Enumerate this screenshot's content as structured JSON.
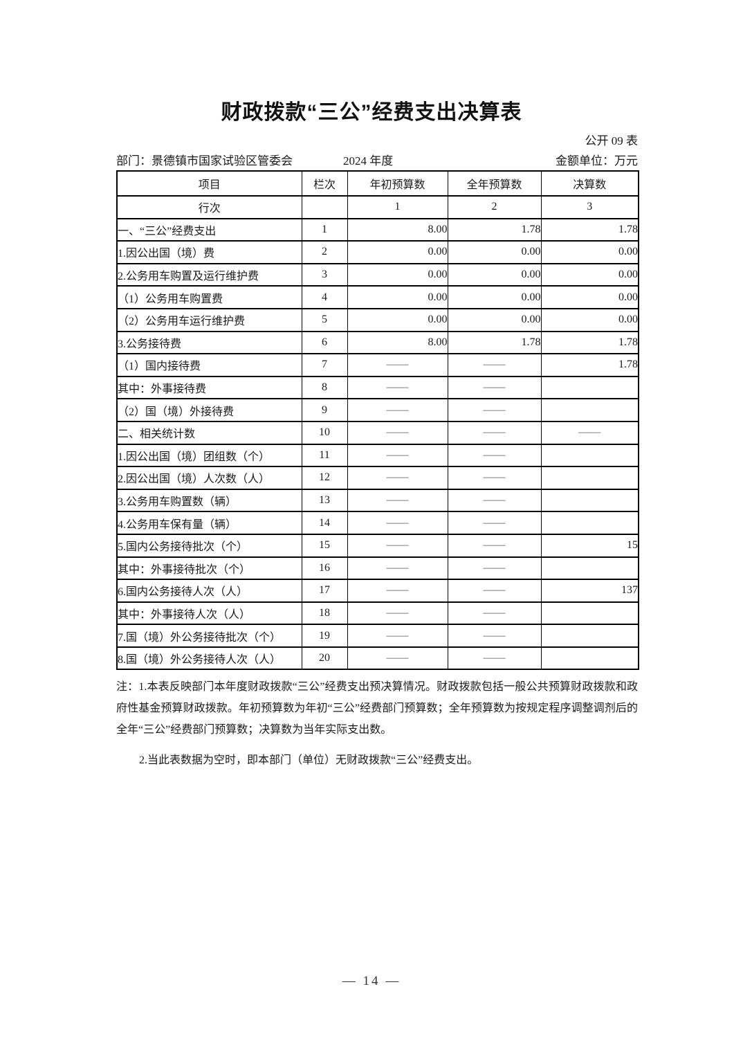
{
  "page": {
    "title": "财政拨款“三公”经费支出决算表",
    "table_code": "公开 09 表",
    "department": "部门：景德镇市国家试验区管委会",
    "year": "2024 年度",
    "unit": "金额单位：万元",
    "page_number": "— 14 —"
  },
  "table": {
    "columns": [
      "项目",
      "栏次",
      "年初预算数",
      "全年预算数",
      "决算数"
    ],
    "index_row": {
      "label": "行次",
      "blank": "",
      "c1": "1",
      "c2": "2",
      "c3": "3"
    },
    "rows": [
      {
        "item": "一、“三公”经费支出",
        "indent": 0,
        "line": "1",
        "v": [
          "8.00",
          "1.78",
          "1.78"
        ]
      },
      {
        "item": "1.因公出国（境）费",
        "indent": 1,
        "line": "2",
        "v": [
          "0.00",
          "0.00",
          "0.00"
        ]
      },
      {
        "item": "2.公务用车购置及运行维护费",
        "indent": 1,
        "line": "3",
        "v": [
          "0.00",
          "0.00",
          "0.00"
        ]
      },
      {
        "item": "（1）公务用车购置费",
        "indent": 2,
        "line": "4",
        "v": [
          "0.00",
          "0.00",
          "0.00"
        ]
      },
      {
        "item": "（2）公务用车运行维护费",
        "indent": 2,
        "line": "5",
        "v": [
          "0.00",
          "0.00",
          "0.00"
        ]
      },
      {
        "item": "3.公务接待费",
        "indent": 1,
        "line": "6",
        "v": [
          "8.00",
          "1.78",
          "1.78"
        ]
      },
      {
        "item": "（1）国内接待费",
        "indent": 2,
        "line": "7",
        "v": [
          "——",
          "——",
          "1.78"
        ]
      },
      {
        "item": "其中：外事接待费",
        "indent": 3,
        "line": "8",
        "v": [
          "——",
          "——",
          ""
        ]
      },
      {
        "item": "（2）国（境）外接待费",
        "indent": 2,
        "line": "9",
        "v": [
          "——",
          "——",
          ""
        ]
      },
      {
        "item": "二、相关统计数",
        "indent": 0,
        "line": "10",
        "v": [
          "——",
          "——",
          "——"
        ]
      },
      {
        "item": "1.因公出国（境）团组数（个）",
        "indent": 1,
        "line": "11",
        "v": [
          "——",
          "——",
          ""
        ]
      },
      {
        "item": "2.因公出国（境）人次数（人）",
        "indent": 1,
        "line": "12",
        "v": [
          "——",
          "——",
          ""
        ]
      },
      {
        "item": "3.公务用车购置数（辆）",
        "indent": 1,
        "line": "13",
        "v": [
          "——",
          "——",
          ""
        ]
      },
      {
        "item": "4.公务用车保有量（辆）",
        "indent": 1,
        "line": "14",
        "v": [
          "——",
          "——",
          ""
        ]
      },
      {
        "item": "5.国内公务接待批次（个）",
        "indent": 1,
        "line": "15",
        "v": [
          "——",
          "——",
          "15"
        ]
      },
      {
        "item": "其中：外事接待批次（个）",
        "indent": 2,
        "line": "16",
        "v": [
          "——",
          "——",
          ""
        ]
      },
      {
        "item": "6.国内公务接待人次（人）",
        "indent": 1,
        "line": "17",
        "v": [
          "——",
          "——",
          "137"
        ]
      },
      {
        "item": "其中：外事接待人次（人）",
        "indent": 2,
        "line": "18",
        "v": [
          "——",
          "——",
          ""
        ]
      },
      {
        "item": "7.国（境）外公务接待批次（个）",
        "indent": 1,
        "line": "19",
        "v": [
          "——",
          "——",
          ""
        ]
      },
      {
        "item": "8.国（境）外公务接待人次（人）",
        "indent": 1,
        "line": "20",
        "v": [
          "——",
          "——",
          ""
        ]
      }
    ]
  },
  "notes": {
    "note1": "注：1.本表反映部门本年度财政拨款“三公”经费支出预决算情况。财政拨款包括一般公共预算财政拨款和政府性基金预算财政拨款。年初预算数为年初“三公”经费部门预算数；全年预算数为按规定程序调整调剂后的全年“三公”经费部门预算数；决算数为当年实际支出数。",
    "note2": "2.当此表数据为空时，即本部门（单位）无财政拨款“三公”经费支出。"
  }
}
